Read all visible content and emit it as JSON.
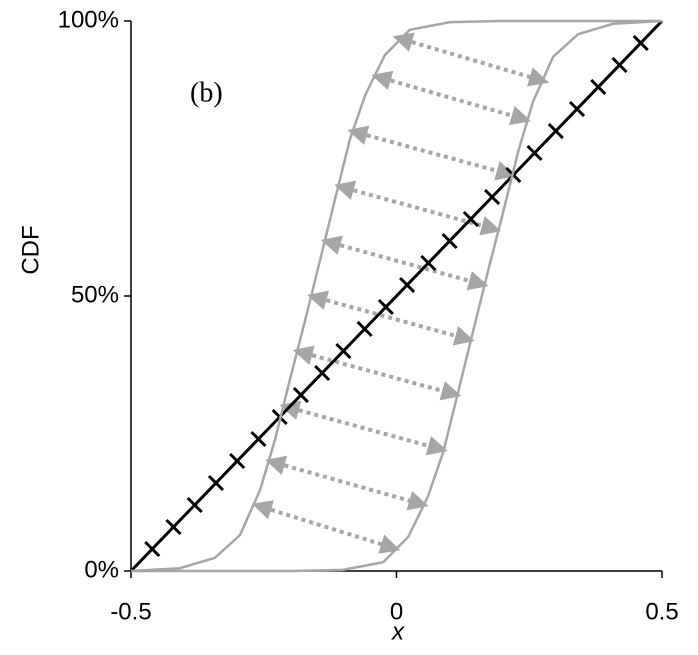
{
  "chart_data": {
    "type": "line",
    "annotation": "(b)",
    "xlabel": "x",
    "ylabel": "CDF",
    "xlim": [
      -0.5,
      0.5
    ],
    "xticks": [
      -0.5,
      0,
      0.5
    ],
    "ylim": [
      0,
      100
    ],
    "yticks": [
      {
        "value": 0,
        "label": "0%"
      },
      {
        "value": 50,
        "label": "50%"
      },
      {
        "value": 100,
        "label": "100%"
      }
    ],
    "series": [
      {
        "color": "#000000",
        "x": [
          -0.5,
          0.5
        ],
        "values": [
          0,
          100
        ]
      },
      {
        "color": "#000000",
        "marker": "cross",
        "x": [
          -0.46,
          -0.42,
          -0.38,
          -0.34,
          -0.3,
          -0.26,
          -0.22,
          -0.18,
          -0.14,
          -0.1,
          -0.06,
          -0.02,
          0.02,
          0.06,
          0.1,
          0.14,
          0.18,
          0.22,
          0.26,
          0.3,
          0.34,
          0.38,
          0.42,
          0.46
        ],
        "values": [
          4,
          8,
          12,
          16,
          20,
          24,
          28,
          32,
          36,
          40,
          44,
          48,
          52,
          56,
          60,
          64,
          68,
          72,
          76,
          80,
          84,
          88,
          92,
          96
        ]
      },
      {
        "color": "#a6a6a6",
        "x": [
          -0.5,
          -0.408,
          -0.342,
          -0.295,
          -0.257,
          -0.229,
          -0.201,
          -0.172,
          -0.144,
          -0.116,
          -0.088,
          -0.059,
          -0.022,
          0.025,
          0.101,
          0.195,
          0.5
        ],
        "values": [
          0,
          0.5,
          2.4,
          6.5,
          14.7,
          23.8,
          34.7,
          45.6,
          56.5,
          67.5,
          78.4,
          86.5,
          93.8,
          98.4,
          99.8,
          100,
          100
        ]
      },
      {
        "color": "#a6a6a6",
        "x": [
          -0.5,
          -0.195,
          -0.101,
          -0.025,
          0.022,
          0.059,
          0.088,
          0.116,
          0.144,
          0.172,
          0.201,
          0.229,
          0.257,
          0.295,
          0.342,
          0.408,
          0.5
        ],
        "values": [
          0,
          0,
          0.2,
          1.6,
          6.2,
          13.5,
          21.6,
          32.5,
          43.5,
          54.4,
          65.3,
          76.2,
          85.3,
          93.5,
          97.6,
          99.5,
          100
        ]
      }
    ],
    "arrows": [
      {
        "x1": 0.0,
        "y1": 97,
        "x2": 0.28,
        "y2": 89
      },
      {
        "x1": -0.04,
        "y1": 90,
        "x2": 0.246,
        "y2": 82
      },
      {
        "x1": -0.085,
        "y1": 80,
        "x2": 0.218,
        "y2": 72
      },
      {
        "x1": -0.11,
        "y1": 70,
        "x2": 0.19,
        "y2": 62
      },
      {
        "x1": -0.135,
        "y1": 60,
        "x2": 0.166,
        "y2": 52
      },
      {
        "x1": -0.161,
        "y1": 50,
        "x2": 0.14,
        "y2": 42
      },
      {
        "x1": -0.188,
        "y1": 40,
        "x2": 0.115,
        "y2": 32
      },
      {
        "x1": -0.213,
        "y1": 30,
        "x2": 0.089,
        "y2": 22
      },
      {
        "x1": -0.24,
        "y1": 20,
        "x2": 0.053,
        "y2": 12
      },
      {
        "x1": -0.265,
        "y1": 12,
        "x2": 0.0,
        "y2": 4
      }
    ],
    "arrow_color": "#a6a6a6"
  }
}
